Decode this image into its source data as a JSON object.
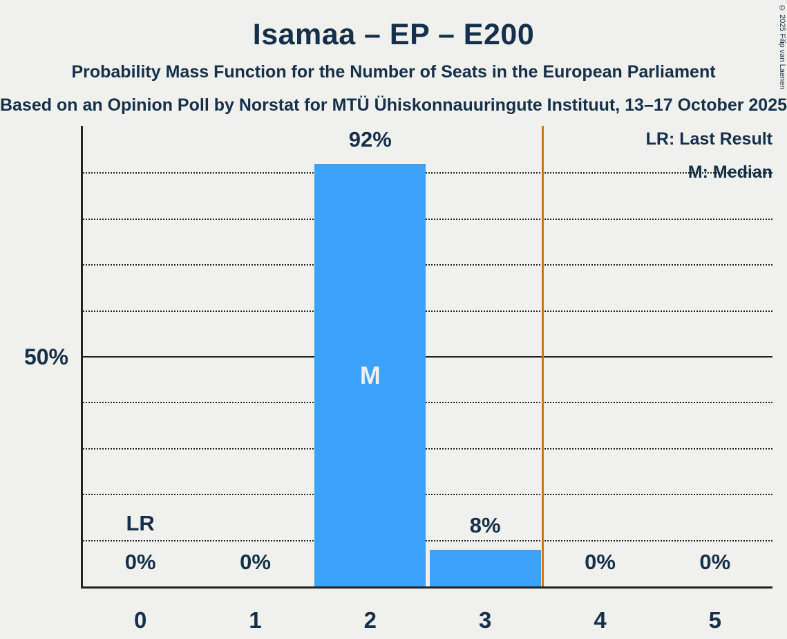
{
  "title": "Isamaa – EP – E200",
  "subtitle": "Probability Mass Function for the Number of Seats in the European Parliament",
  "source_line": "Based on an Opinion Poll by Norstat for MTÜ Ühiskonnauuringute Instituut, 13–17 October 2025",
  "copyright": "© 2025 Filip van Laenen",
  "legend": {
    "last_result": "LR: Last Result",
    "median": "M: Median"
  },
  "y_axis": {
    "label": "50%"
  },
  "chart_data": {
    "type": "bar",
    "categories": [
      0,
      1,
      2,
      3,
      4,
      5
    ],
    "values": [
      0,
      0,
      92,
      8,
      0,
      0
    ],
    "value_labels": [
      "0%",
      "0%",
      "92%",
      "8%",
      "0%",
      "0%"
    ],
    "title": "Isamaa – EP – E200",
    "xlabel": "",
    "ylabel": "",
    "ylim": [
      0,
      100
    ],
    "grid": true,
    "gridlines_pct": [
      10,
      20,
      30,
      40,
      50,
      60,
      70,
      80,
      90
    ],
    "solid_gridline_pct": 50,
    "median_category": 2,
    "median_marker": "M",
    "last_result_category": 0,
    "last_result_marker": "LR",
    "threshold_line_between": 3.5,
    "legend_position": "top-right",
    "colors": {
      "background": "#f0f0ed",
      "text": "#14304a",
      "bar": "#3aa2f9",
      "threshold": "#dc7000",
      "axis": "#222222",
      "median_text": "#f0f0ed"
    }
  }
}
